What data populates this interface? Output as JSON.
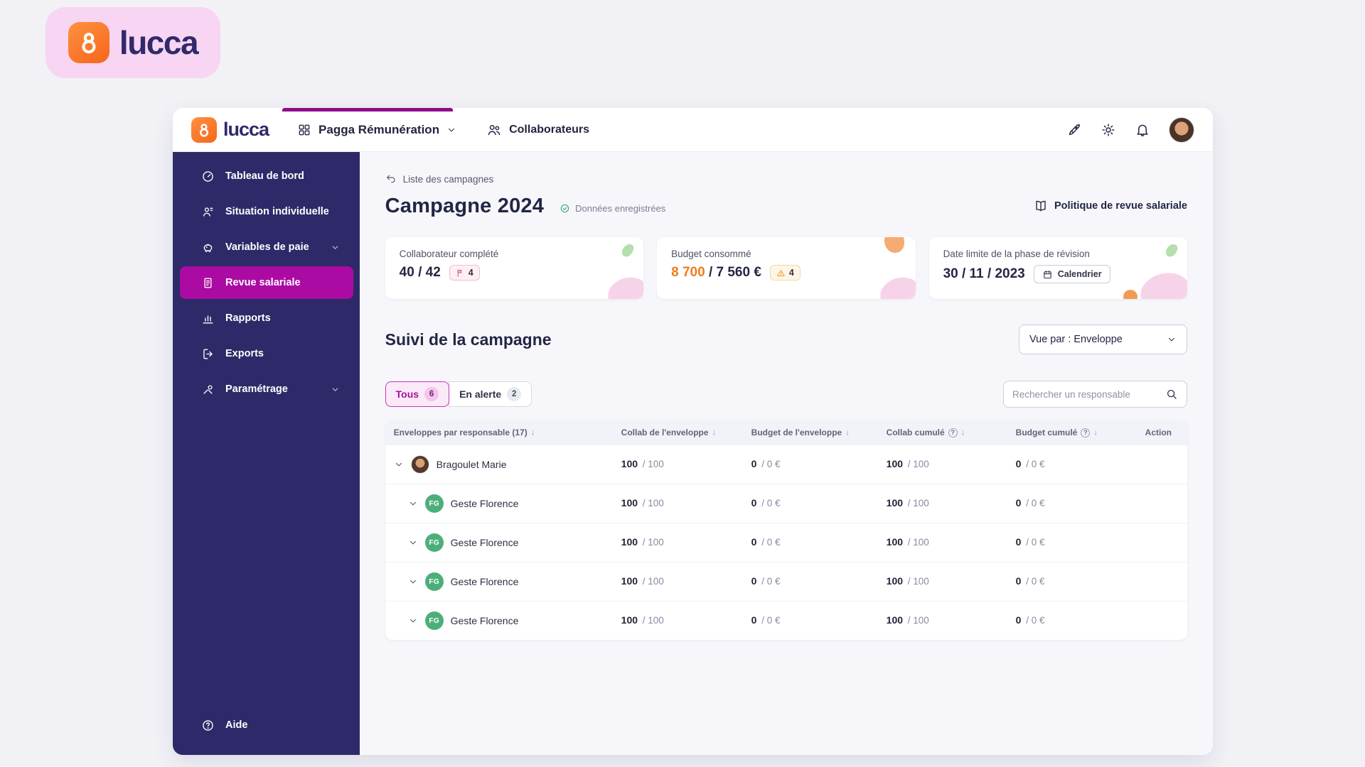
{
  "brand": {
    "wordmark": "lucca"
  },
  "header": {
    "logo_text": "lucca",
    "product": "Pagga Rémunération",
    "nav_collaborateurs": "Collaborateurs",
    "action_icons": [
      "rocket-icon",
      "gear-icon",
      "bell-icon",
      "user-avatar"
    ]
  },
  "sidebar": {
    "items": [
      {
        "label": "Tableau de bord",
        "icon": "gauge",
        "active": false,
        "chevron": false
      },
      {
        "label": "Situation individuelle",
        "icon": "person-chart",
        "active": false,
        "chevron": false
      },
      {
        "label": "Variables de paie",
        "icon": "piggy-bank",
        "active": false,
        "chevron": true
      },
      {
        "label": "Revue salariale",
        "icon": "document",
        "active": true,
        "chevron": false
      },
      {
        "label": "Rapports",
        "icon": "bar-chart",
        "active": false,
        "chevron": false
      },
      {
        "label": "Exports",
        "icon": "export",
        "active": false,
        "chevron": false
      },
      {
        "label": "Paramétrage",
        "icon": "tools",
        "active": false,
        "chevron": true
      }
    ],
    "help": {
      "label": "Aide",
      "icon": "help"
    }
  },
  "page": {
    "back_link": "Liste des campagnes",
    "title": "Campagne 2024",
    "saved_badge": "Données enregistrées",
    "policy_link": "Politique de revue salariale",
    "cards": [
      {
        "label": "Collaborateur complété",
        "value": "40 / 42",
        "badge_type": "flag",
        "badge_count": "4"
      },
      {
        "label": "Budget consommé",
        "value_accent": "8 700",
        "value_rest": "/ 7 560 €",
        "badge_type": "warning",
        "badge_count": "4"
      },
      {
        "label": "Date limite de la phase de révision",
        "value": "30 / 11 / 2023",
        "button": "Calendrier"
      }
    ],
    "section_title": "Suivi de la campagne",
    "view_select": "Vue par : Enveloppe",
    "filters": [
      {
        "label": "Tous",
        "count": "6",
        "active": true
      },
      {
        "label": "En alerte",
        "count": "2",
        "active": false
      }
    ],
    "search_placeholder": "Rechercher un responsable",
    "table": {
      "columns": [
        {
          "label": "Enveloppes par responsable (17)",
          "sort": true,
          "info": false
        },
        {
          "label": "Collab de l'enveloppe",
          "sort": true,
          "info": false
        },
        {
          "label": "Budget de l'enveloppe",
          "sort": true,
          "info": false
        },
        {
          "label": "Collab cumulé",
          "sort": true,
          "info": true
        },
        {
          "label": "Budget cumulé",
          "sort": true,
          "info": true
        },
        {
          "label": "Action",
          "sort": false,
          "info": false
        }
      ],
      "rows": [
        {
          "name": "Bragoulet Marie",
          "avatar_type": "photo",
          "avatar_text": "",
          "child": false,
          "values": [
            {
              "bold": "100",
              "rest": "/ 100"
            },
            {
              "bold": "0",
              "rest": "/ 0 €"
            },
            {
              "bold": "100",
              "rest": "/ 100"
            },
            {
              "bold": "0",
              "rest": "/ 0 €"
            }
          ]
        },
        {
          "name": "Geste Florence",
          "avatar_type": "initials",
          "avatar_text": "FG",
          "child": true,
          "values": [
            {
              "bold": "100",
              "rest": "/ 100"
            },
            {
              "bold": "0",
              "rest": "/ 0 €"
            },
            {
              "bold": "100",
              "rest": "/ 100"
            },
            {
              "bold": "0",
              "rest": "/ 0 €"
            }
          ]
        },
        {
          "name": "Geste Florence",
          "avatar_type": "initials",
          "avatar_text": "FG",
          "child": true,
          "values": [
            {
              "bold": "100",
              "rest": "/ 100"
            },
            {
              "bold": "0",
              "rest": "/ 0 €"
            },
            {
              "bold": "100",
              "rest": "/ 100"
            },
            {
              "bold": "0",
              "rest": "/ 0 €"
            }
          ]
        },
        {
          "name": "Geste Florence",
          "avatar_type": "initials",
          "avatar_text": "FG",
          "child": true,
          "values": [
            {
              "bold": "100",
              "rest": "/ 100"
            },
            {
              "bold": "0",
              "rest": "/ 0 €"
            },
            {
              "bold": "100",
              "rest": "/ 100"
            },
            {
              "bold": "0",
              "rest": "/ 0 €"
            }
          ]
        },
        {
          "name": "Geste Florence",
          "avatar_type": "initials",
          "avatar_text": "FG",
          "child": true,
          "values": [
            {
              "bold": "100",
              "rest": "/ 100"
            },
            {
              "bold": "0",
              "rest": "/ 0 €"
            },
            {
              "bold": "100",
              "rest": "/ 100"
            },
            {
              "bold": "0",
              "rest": "/ 0 €"
            }
          ]
        }
      ]
    }
  },
  "colors": {
    "page_background": "#f1f1f6",
    "brand_badge_pink": "#f8d5f3",
    "brand_orange": "#f6661c",
    "sidebar_indigo": "#2e2a69",
    "active_magenta": "#ab0ba3",
    "tab_indicator": "#8f0d89",
    "accent_orange_value": "#ee7d1d",
    "success_green": "#27a566",
    "flag_pink": "#dd4380",
    "warning_orange": "#eb9b1f",
    "avatar_green": "#4caf7a"
  }
}
